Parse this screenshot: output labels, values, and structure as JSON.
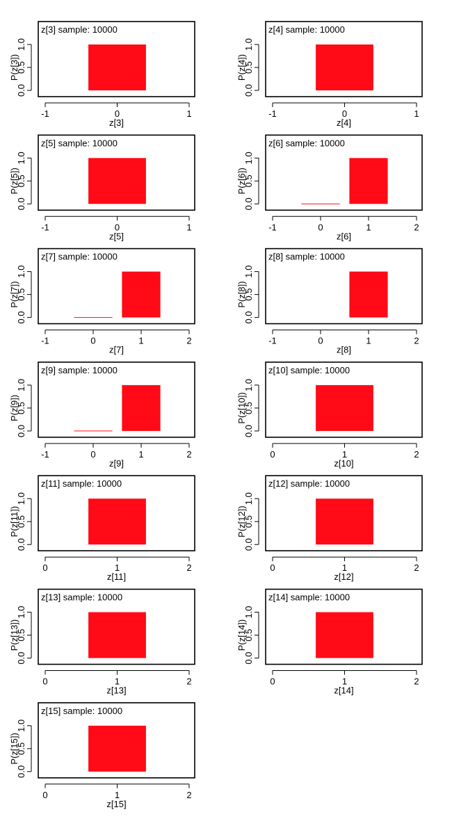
{
  "figure": {
    "bar_color": "#ff0a16",
    "frame_color": "#000000"
  },
  "chart_data": [
    {
      "type": "bar",
      "title": "z[3] sample: 10000",
      "xlabel": "z[3]",
      "ylabel": "P(z[3])",
      "xlim": [
        -1,
        1
      ],
      "ylim": [
        0,
        1
      ],
      "x_ticks": [
        "-1",
        "0",
        "1"
      ],
      "y_ticks": [
        "0.0",
        "0.5",
        "1.0"
      ],
      "categories": [
        0
      ],
      "values": [
        1.0
      ]
    },
    {
      "type": "bar",
      "title": "z[4] sample: 10000",
      "xlabel": "z[4]",
      "ylabel": "P(z[4])",
      "xlim": [
        -1,
        1
      ],
      "ylim": [
        0,
        1
      ],
      "x_ticks": [
        "-1",
        "0",
        "1"
      ],
      "y_ticks": [
        "0.0",
        "0.5",
        "1.0"
      ],
      "categories": [
        0
      ],
      "values": [
        1.0
      ]
    },
    {
      "type": "bar",
      "title": "z[5] sample: 10000",
      "xlabel": "z[5]",
      "ylabel": "P(z[5])",
      "xlim": [
        -1,
        1
      ],
      "ylim": [
        0,
        1
      ],
      "x_ticks": [
        "-1",
        "0",
        "1"
      ],
      "y_ticks": [
        "0.0",
        "0.5",
        "1.0"
      ],
      "categories": [
        0
      ],
      "values": [
        1.0
      ]
    },
    {
      "type": "bar",
      "title": "z[6] sample: 10000",
      "xlabel": "z[6]",
      "ylabel": "P(z[6])",
      "xlim": [
        -1,
        2
      ],
      "ylim": [
        0,
        1
      ],
      "x_ticks": [
        "-1",
        "0",
        "1",
        "2"
      ],
      "y_ticks": [
        "0.0",
        "0.5",
        "1.0"
      ],
      "categories": [
        0,
        1
      ],
      "values": [
        0.0003,
        0.9997
      ]
    },
    {
      "type": "bar",
      "title": "z[7] sample: 10000",
      "xlabel": "z[7]",
      "ylabel": "P(z[7])",
      "xlim": [
        -1,
        2
      ],
      "ylim": [
        0,
        1
      ],
      "x_ticks": [
        "-1",
        "0",
        "1",
        "2"
      ],
      "y_ticks": [
        "0.0",
        "0.5",
        "1.0"
      ],
      "categories": [
        0,
        1
      ],
      "values": [
        0.0003,
        0.9997
      ]
    },
    {
      "type": "bar",
      "title": "z[8] sample: 10000",
      "xlabel": "z[8]",
      "ylabel": "P(z[8])",
      "xlim": [
        -1,
        2
      ],
      "ylim": [
        0,
        1
      ],
      "x_ticks": [
        "-1",
        "0",
        "1",
        "2"
      ],
      "y_ticks": [
        "0.0",
        "0.5",
        "1.0"
      ],
      "categories": [
        1
      ],
      "values": [
        1.0
      ]
    },
    {
      "type": "bar",
      "title": "z[9] sample: 10000",
      "xlabel": "z[9]",
      "ylabel": "P(z[9])",
      "xlim": [
        -1,
        2
      ],
      "ylim": [
        0,
        1
      ],
      "x_ticks": [
        "-1",
        "0",
        "1",
        "2"
      ],
      "y_ticks": [
        "0.0",
        "0.5",
        "1.0"
      ],
      "categories": [
        0,
        1
      ],
      "values": [
        0.0003,
        0.9997
      ]
    },
    {
      "type": "bar",
      "title": "z[10] sample: 10000",
      "xlabel": "z[10]",
      "ylabel": "P(z[10])",
      "xlim": [
        0,
        2
      ],
      "ylim": [
        0,
        1
      ],
      "x_ticks": [
        "0",
        "1",
        "2"
      ],
      "y_ticks": [
        "0.0",
        "0.5",
        "1.0"
      ],
      "categories": [
        1
      ],
      "values": [
        1.0
      ]
    },
    {
      "type": "bar",
      "title": "z[11] sample: 10000",
      "xlabel": "z[11]",
      "ylabel": "P(z[11])",
      "xlim": [
        0,
        2
      ],
      "ylim": [
        0,
        1
      ],
      "x_ticks": [
        "0",
        "1",
        "2"
      ],
      "y_ticks": [
        "0.0",
        "0.5",
        "1.0"
      ],
      "categories": [
        1
      ],
      "values": [
        1.0
      ]
    },
    {
      "type": "bar",
      "title": "z[12] sample: 10000",
      "xlabel": "z[12]",
      "ylabel": "P(z[12])",
      "xlim": [
        0,
        2
      ],
      "ylim": [
        0,
        1
      ],
      "x_ticks": [
        "0",
        "1",
        "2"
      ],
      "y_ticks": [
        "0.0",
        "0.5",
        "1.0"
      ],
      "categories": [
        1
      ],
      "values": [
        1.0
      ]
    },
    {
      "type": "bar",
      "title": "z[13] sample: 10000",
      "xlabel": "z[13]",
      "ylabel": "P(z[13])",
      "xlim": [
        0,
        2
      ],
      "ylim": [
        0,
        1
      ],
      "x_ticks": [
        "0",
        "1",
        "2"
      ],
      "y_ticks": [
        "0.0",
        "0.5",
        "1.0"
      ],
      "categories": [
        1
      ],
      "values": [
        1.0
      ]
    },
    {
      "type": "bar",
      "title": "z[14] sample: 10000",
      "xlabel": "z[14]",
      "ylabel": "P(z[14])",
      "xlim": [
        0,
        2
      ],
      "ylim": [
        0,
        1
      ],
      "x_ticks": [
        "0",
        "1",
        "2"
      ],
      "y_ticks": [
        "0.0",
        "0.5",
        "1.0"
      ],
      "categories": [
        1
      ],
      "values": [
        1.0
      ]
    },
    {
      "type": "bar",
      "title": "z[15] sample: 10000",
      "xlabel": "z[15]",
      "ylabel": "P(z[15])",
      "xlim": [
        0,
        2
      ],
      "ylim": [
        0,
        1
      ],
      "x_ticks": [
        "0",
        "1",
        "2"
      ],
      "y_ticks": [
        "0.0",
        "0.5",
        "1.0"
      ],
      "categories": [
        1
      ],
      "values": [
        1.0
      ]
    }
  ]
}
